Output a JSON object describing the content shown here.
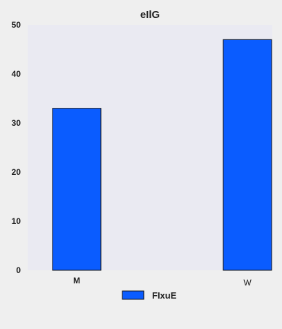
{
  "chart_data": {
    "type": "bar",
    "title": "eIlG",
    "xlabel": "",
    "ylabel": "",
    "categories": [
      "M",
      "W"
    ],
    "series": [
      {
        "name": "FIxuE",
        "values": [
          33,
          47
        ],
        "color": "#0a5cff"
      }
    ],
    "ylim": [
      0,
      50
    ],
    "yticks": [
      "0",
      "10",
      "20",
      "30",
      "40",
      "50"
    ],
    "grid": false,
    "legend_position": "bottom-center",
    "plot_background": "#eaeaf2",
    "page_background": "#efefef"
  }
}
